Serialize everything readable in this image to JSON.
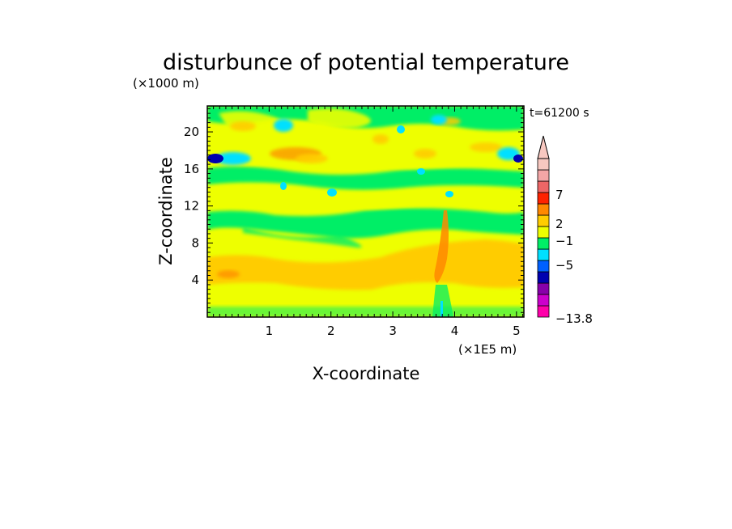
{
  "chart_data": {
    "type": "heatmap",
    "title": "disturbunce of potential temperature",
    "y_unit_label": "(×1000 m)",
    "x_unit_label": "(×1E5 m)",
    "xlabel": "X-coordinate",
    "ylabel": "Z-coordinate",
    "time_label": "t=61200 s",
    "xlim": [
      0,
      5.12
    ],
    "ylim": [
      0,
      22.8
    ],
    "x_ticks": [
      "1",
      "2",
      "3",
      "4",
      "5"
    ],
    "y_ticks": [
      "4",
      "8",
      "12",
      "16",
      "20"
    ],
    "colorbar": {
      "min_label": "−13.8",
      "labels": [
        "7",
        "2",
        "−1",
        "−5",
        "−13.8"
      ],
      "colors": [
        "#ff00aa",
        "#cc00cc",
        "#8800aa",
        "#0000b0",
        "#0060ff",
        "#00e0ff",
        "#00ee66",
        "#eeff00",
        "#ffcc00",
        "#ff8800",
        "#ff2200",
        "#ee6666",
        "#f4a6a6",
        "#f8c8c0"
      ]
    },
    "field_description": [
      {
        "zmin": 0,
        "zmax": 1,
        "value_range": "-1 to 2",
        "dominant": "yellow/green"
      },
      {
        "zmin": 1,
        "zmax": 7,
        "value_range": "1 to 4",
        "dominant": "yellow/orange"
      },
      {
        "zmin": 7,
        "zmax": 12,
        "value_range": "-1 to 2",
        "dominant": "yellow/green"
      },
      {
        "zmin": 12,
        "zmax": 16,
        "value_range": "-2 to 2",
        "dominant": "green/yellow"
      },
      {
        "zmin": 16,
        "zmax": 19,
        "value_range": "-5 to 4",
        "dominant": "orange/cyan/blue"
      },
      {
        "zmin": 19,
        "zmax": 22.8,
        "value_range": "-2 to 2",
        "dominant": "yellow/green"
      }
    ],
    "grid": false,
    "legend_placement": "right"
  }
}
